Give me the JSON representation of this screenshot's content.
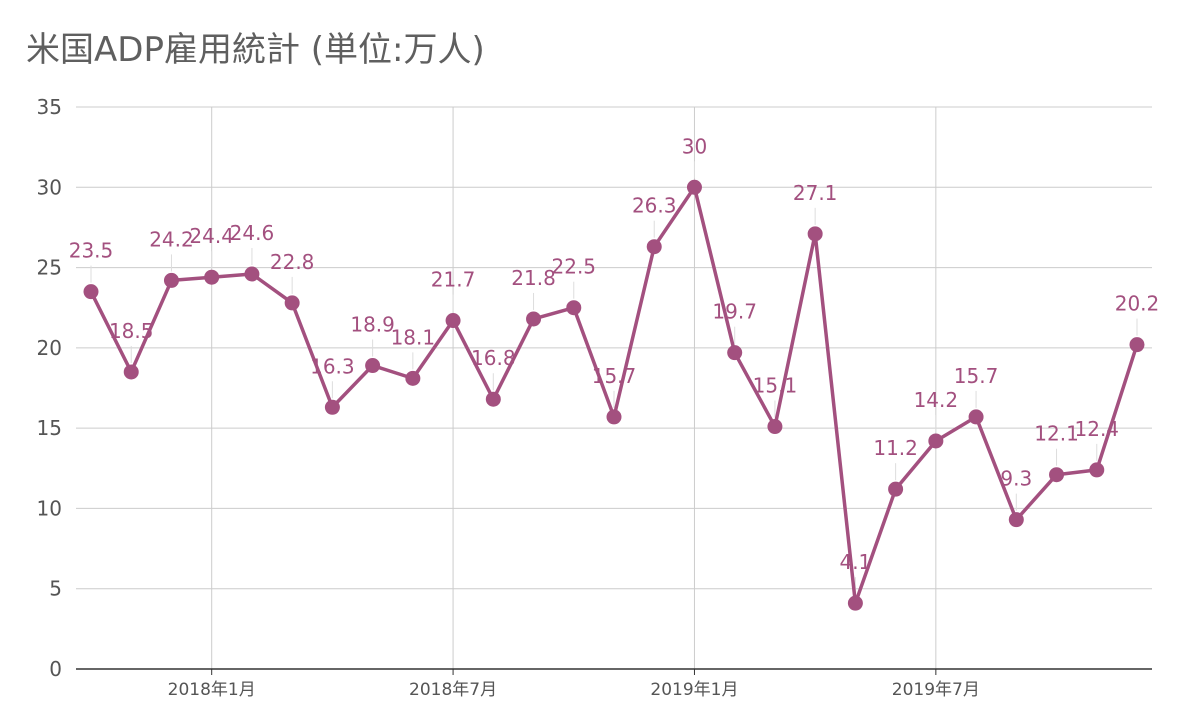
{
  "chart_data": {
    "type": "line",
    "title": "米国ADP雇用統計 (単位:万人)",
    "xlabel": "",
    "ylabel": "",
    "ylim": [
      0,
      35
    ],
    "y_ticks": [
      0,
      5,
      10,
      15,
      20,
      25,
      30,
      35
    ],
    "x_ticks": [
      {
        "x": "2018-01",
        "label": "2018年1月"
      },
      {
        "x": "2018-07",
        "label": "2018年7月"
      },
      {
        "x": "2019-01",
        "label": "2019年1月"
      },
      {
        "x": "2019-07",
        "label": "2019年7月"
      }
    ],
    "grid": true,
    "legend": "none",
    "colors": {
      "line": "#a3507f",
      "label": "#a3507f",
      "grid": "#cccccc",
      "axis": "#333333"
    },
    "x": [
      "2017-10",
      "2017-11",
      "2017-12",
      "2018-01",
      "2018-02",
      "2018-03",
      "2018-04",
      "2018-05",
      "2018-06",
      "2018-07",
      "2018-08",
      "2018-09",
      "2018-10",
      "2018-11",
      "2018-12",
      "2019-01",
      "2019-02",
      "2019-03",
      "2019-04",
      "2019-05",
      "2019-06",
      "2019-07",
      "2019-08",
      "2019-09",
      "2019-10",
      "2019-11",
      "2019-12"
    ],
    "series": [
      {
        "values": [
          23.5,
          18.5,
          24.2,
          24.4,
          24.6,
          22.8,
          16.3,
          18.9,
          18.1,
          21.7,
          16.8,
          21.8,
          22.5,
          15.7,
          26.3,
          30,
          19.7,
          15.1,
          27.1,
          4.1,
          11.2,
          14.2,
          15.7,
          9.3,
          12.1,
          12.4,
          20.2
        ],
        "labels": [
          "23.5",
          "18.5",
          "24.2",
          "24.4",
          "24.6",
          "22.8",
          "16.3",
          "18.9",
          "18.1",
          "21.7",
          "16.8",
          "21.8",
          "22.5",
          "15.7",
          "26.3",
          "30",
          "19.7",
          "15.1",
          "27.1",
          "4.1",
          "11.2",
          "14.2",
          "15.7",
          "9.3",
          "12.1",
          "12.4",
          "20.2"
        ]
      }
    ]
  }
}
